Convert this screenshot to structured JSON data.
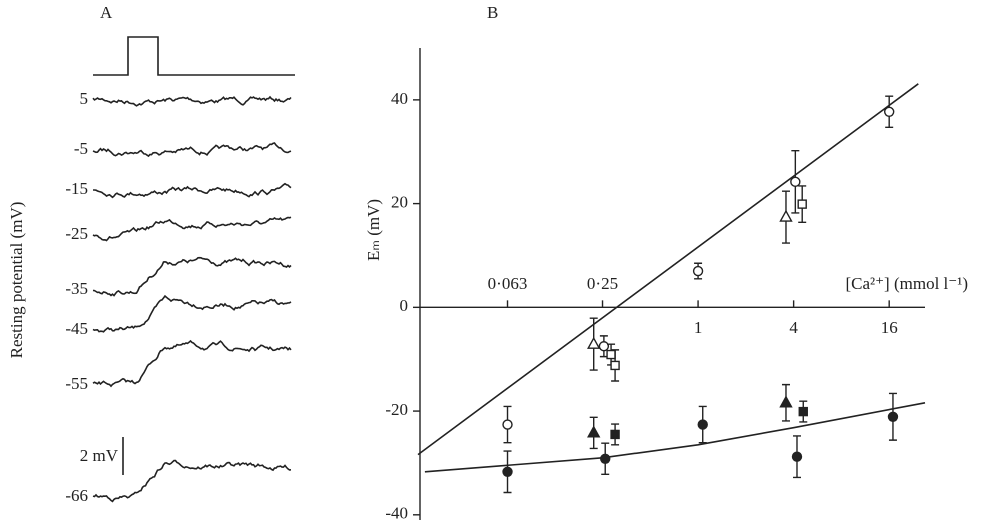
{
  "chart_data": [
    {
      "type": "traces",
      "title": "A",
      "ylabel": "Resting potential (mV)",
      "categories": [
        "5",
        "-5",
        "-15",
        "-25",
        "-35",
        "-45",
        "-55",
        "-66"
      ],
      "values": [
        0,
        0,
        0,
        0.7,
        1.6,
        1.5,
        2.1,
        1.8
      ],
      "scale_bar": {
        "value": 2,
        "label": "2 mV"
      },
      "color": "#222222"
    },
    {
      "type": "scatter",
      "title": "B",
      "xlabel": "[Ca²⁺] (mmol l⁻¹)",
      "ylabel": "Eₘ (mV)",
      "xscale": "log",
      "xlim": [
        0.0177,
        26.9
      ],
      "ylim": [
        -41,
        50
      ],
      "xticks": [
        {
          "value": 0.063,
          "label": "0·063"
        },
        {
          "value": 0.25,
          "label": "0·25"
        },
        1,
        4,
        16
      ],
      "xtick_label_side": [
        "above",
        "above",
        "below",
        "below",
        "below"
      ],
      "yticks": [
        -40,
        -20,
        0,
        20,
        40
      ],
      "color": "#222222",
      "series": [
        {
          "marker": "circle",
          "filled": false,
          "x": [
            0.063,
            0.255,
            1,
            4.1,
            16
          ],
          "values": [
            -22.6,
            -7.5,
            7,
            24.2,
            37.7
          ],
          "errors": [
            3.5,
            2,
            1.5,
            6,
            3
          ]
        },
        {
          "marker": "triangle",
          "filled": false,
          "x": [
            0.22,
            3.58
          ],
          "values": [
            -7.1,
            17.4
          ],
          "errors": [
            5,
            5
          ]
        },
        {
          "marker": "square",
          "filled": false,
          "x": [
            0.283,
            0.3,
            4.53
          ],
          "values": [
            -9.1,
            -11.2,
            19.9
          ],
          "errors": [
            2,
            3,
            3.5
          ]
        },
        {
          "marker": "circle",
          "filled": true,
          "x": [
            0.063,
            0.26,
            1.07,
            4.2,
            16.9
          ],
          "values": [
            -31.7,
            -29.2,
            -22.6,
            -28.8,
            -21.1
          ],
          "errors": [
            4,
            3,
            3.5,
            4,
            4.5
          ]
        },
        {
          "marker": "triangle",
          "filled": true,
          "x": [
            0.22,
            3.58
          ],
          "values": [
            -24.2,
            -18.4
          ],
          "errors": [
            3,
            3.5
          ]
        },
        {
          "marker": "square",
          "filled": true,
          "x": [
            0.3,
            4.6
          ],
          "values": [
            -24.5,
            -20.1
          ],
          "errors": [
            2,
            2
          ]
        },
        {
          "marker": "line",
          "x": [
            0.0172,
            24.4
          ],
          "values": [
            -28.4,
            43.1
          ]
        },
        {
          "marker": "line",
          "x": [
            0.019,
            0.25,
            1,
            4,
            26.9
          ],
          "values": [
            -31.7,
            -29,
            -26.5,
            -23.2,
            -18.4
          ]
        }
      ]
    }
  ]
}
